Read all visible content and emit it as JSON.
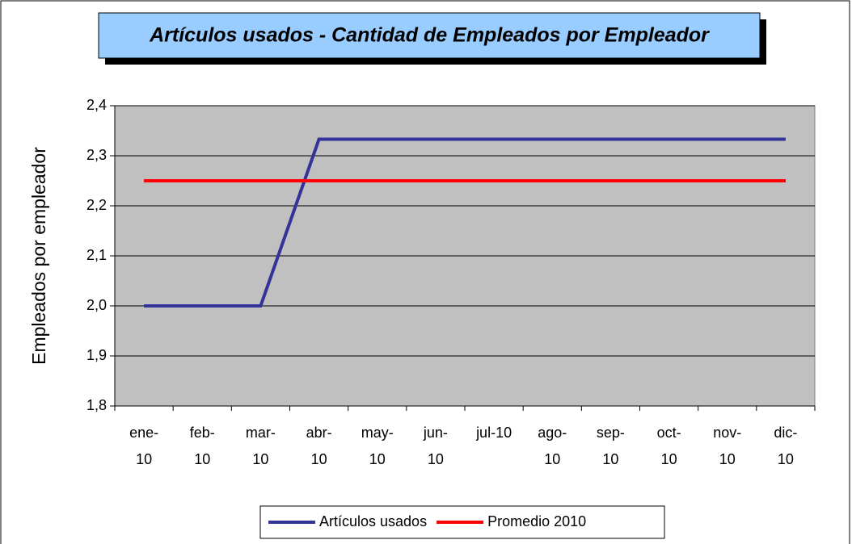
{
  "chart_data": {
    "type": "line",
    "title": "Artículos usados - Cantidad de Empleados por Empleador",
    "y_label": "Empleados por empleador",
    "categories": [
      "ene-10",
      "feb-10",
      "mar-10",
      "abr-10",
      "may-10",
      "jun-10",
      "jul-10",
      "ago-10",
      "sep-10",
      "oct-10",
      "nov-10",
      "dic-10"
    ],
    "series": [
      {
        "name": "Artículos usados",
        "color": "#333399",
        "values": [
          2.0,
          2.0,
          2.0,
          2.333,
          2.333,
          2.333,
          2.333,
          2.333,
          2.333,
          2.333,
          2.333,
          2.333
        ]
      },
      {
        "name": "Promedio 2010",
        "color": "#ff0000",
        "values": [
          2.25,
          2.25,
          2.25,
          2.25,
          2.25,
          2.25,
          2.25,
          2.25,
          2.25,
          2.25,
          2.25,
          2.25
        ]
      }
    ],
    "ylim": [
      1.8,
      2.4
    ],
    "yticks": [
      {
        "value": 1.8,
        "label": "1,8"
      },
      {
        "value": 1.9,
        "label": "1,9"
      },
      {
        "value": 2.0,
        "label": "2,0"
      },
      {
        "value": 2.1,
        "label": "2,1"
      },
      {
        "value": 2.2,
        "label": "2,2"
      },
      {
        "value": 2.3,
        "label": "2,3"
      },
      {
        "value": 2.4,
        "label": "2,4"
      }
    ],
    "grid": true,
    "legend": "bottom",
    "plot_background": "#c0c0c0"
  }
}
